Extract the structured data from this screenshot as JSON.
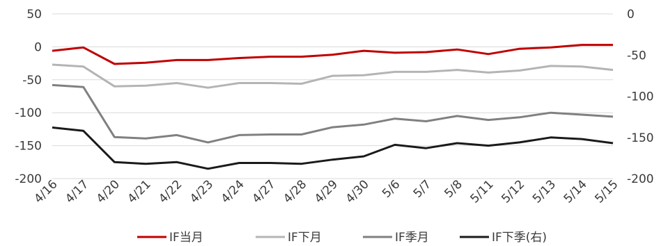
{
  "chart_data": {
    "type": "line",
    "title": "",
    "xlabel": "",
    "ylabel": "",
    "categories": [
      "4/16",
      "4/17",
      "4/20",
      "4/21",
      "4/22",
      "4/23",
      "4/24",
      "4/27",
      "4/28",
      "4/29",
      "4/30",
      "5/6",
      "5/7",
      "5/8",
      "5/11",
      "5/12",
      "5/13",
      "5/14",
      "5/15"
    ],
    "y_left": {
      "ylim": [
        -200,
        50
      ],
      "ticks": [
        50,
        0,
        -50,
        -100,
        -150,
        -200
      ]
    },
    "y_right": {
      "ylim": [
        -200,
        0
      ],
      "ticks": [
        0,
        -50,
        -100,
        -150,
        -200
      ]
    },
    "grid": "horizontal",
    "legend_position": "bottom",
    "series": [
      {
        "name": "IF当月",
        "axis": "left",
        "color": "#c00000",
        "values": [
          -6,
          -1,
          -26,
          -24,
          -20,
          -20,
          -17,
          -15,
          -15,
          -12,
          -6,
          -9,
          -8,
          -4,
          -11,
          -3,
          -1,
          3,
          3
        ]
      },
      {
        "name": "IF下月",
        "axis": "left",
        "color": "#b4b4b4",
        "values": [
          -27,
          -30,
          -60,
          -59,
          -55,
          -62,
          -55,
          -55,
          -56,
          -44,
          -43,
          -38,
          -38,
          -35,
          -39,
          -36,
          -29,
          -30,
          -35
        ]
      },
      {
        "name": "IF季月",
        "axis": "left",
        "color": "#808080",
        "values": [
          -58,
          -61,
          -137,
          -139,
          -134,
          -145,
          -134,
          -133,
          -133,
          -122,
          -118,
          -109,
          -113,
          -105,
          -111,
          -107,
          -100,
          -103,
          -106
        ]
      },
      {
        "name": "IF下季(右)",
        "axis": "right",
        "color": "#1a1a1a",
        "values": [
          -138,
          -142,
          -180,
          -182,
          -180,
          -188,
          -181,
          -181,
          -182,
          -177,
          -173,
          -159,
          -163,
          -157,
          -160,
          -156,
          -150,
          -152,
          -157
        ]
      }
    ]
  }
}
